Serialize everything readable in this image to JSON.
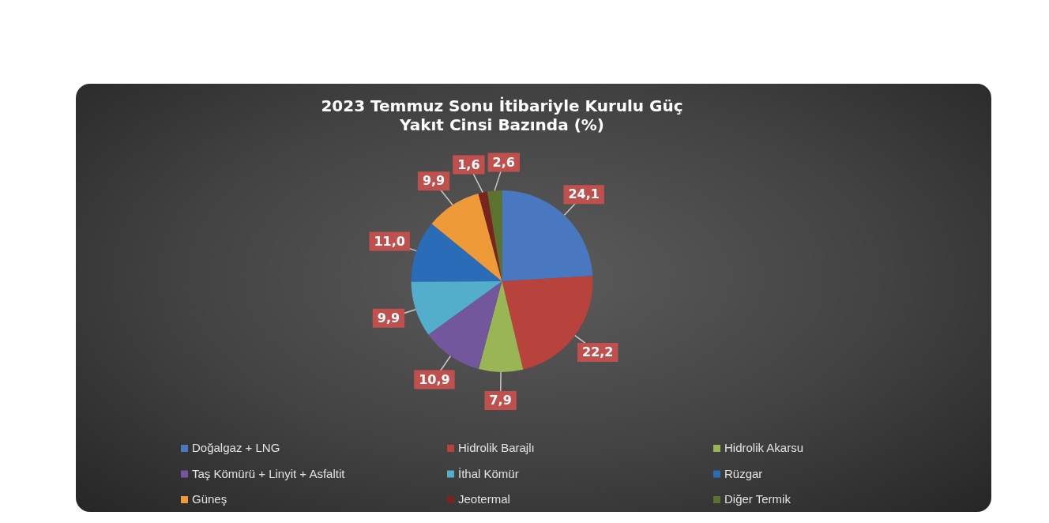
{
  "chart_data": {
    "type": "pie",
    "title": "2023 Temmuz Sonu İtibariyle Kurulu Güç\nYakıt Cinsi Bazında (%)",
    "categories": [
      "Doğalgaz + LNG",
      "Hidrolik Barajlı",
      "Hidrolik Akarsu",
      "Taş Kömürü + Linyit + Asfaltit",
      "İthal Kömür",
      "Rüzgar",
      "Güneş",
      "Jeotermal",
      "Diğer Termik"
    ],
    "values": [
      24.1,
      22.2,
      7.9,
      10.9,
      9.9,
      11.0,
      9.9,
      1.6,
      2.6
    ],
    "value_labels": [
      "24,1",
      "22,2",
      "7,9",
      "10,9",
      "9,9",
      "11,0",
      "9,9",
      "1,6",
      "2,6"
    ],
    "colors": [
      "#4a78c0",
      "#b8433d",
      "#9ab654",
      "#73579c",
      "#53aecb",
      "#2b6cb8",
      "#ee9a38",
      "#7a2420",
      "#5c7330"
    ],
    "legend": "bottom"
  }
}
